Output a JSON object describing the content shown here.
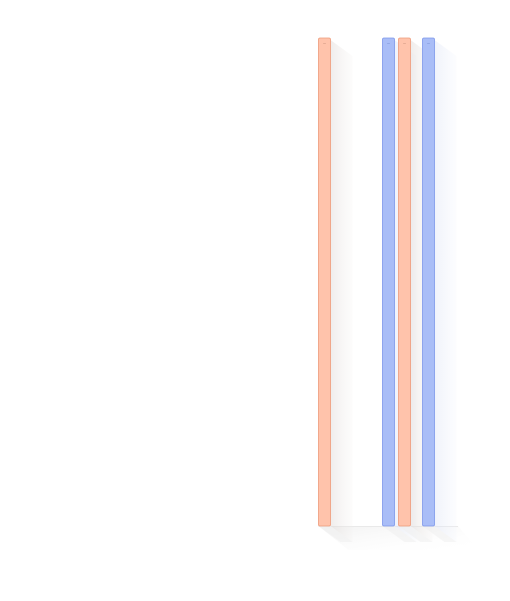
{
  "chart_data": {
    "type": "bar",
    "title": "",
    "xlabel": "",
    "ylabel": "",
    "orientation": "vertical",
    "three_d": true,
    "grid": false,
    "legend": "none",
    "ylim": [
      0,
      1
    ],
    "bars": [
      {
        "category": "",
        "value": 1.0,
        "label": "—",
        "color": "#ffc3ab",
        "border": "#ee9b7b"
      },
      {
        "category": "",
        "value": 1.0,
        "label": "—",
        "color": "#a9bdf7",
        "border": "#7d97ea"
      },
      {
        "category": "",
        "value": 1.0,
        "label": "—",
        "color": "#ffc3ab",
        "border": "#ee9b7b"
      },
      {
        "category": "",
        "value": 1.0,
        "label": "—",
        "color": "#a9bdf7",
        "border": "#7d97ea"
      }
    ]
  }
}
